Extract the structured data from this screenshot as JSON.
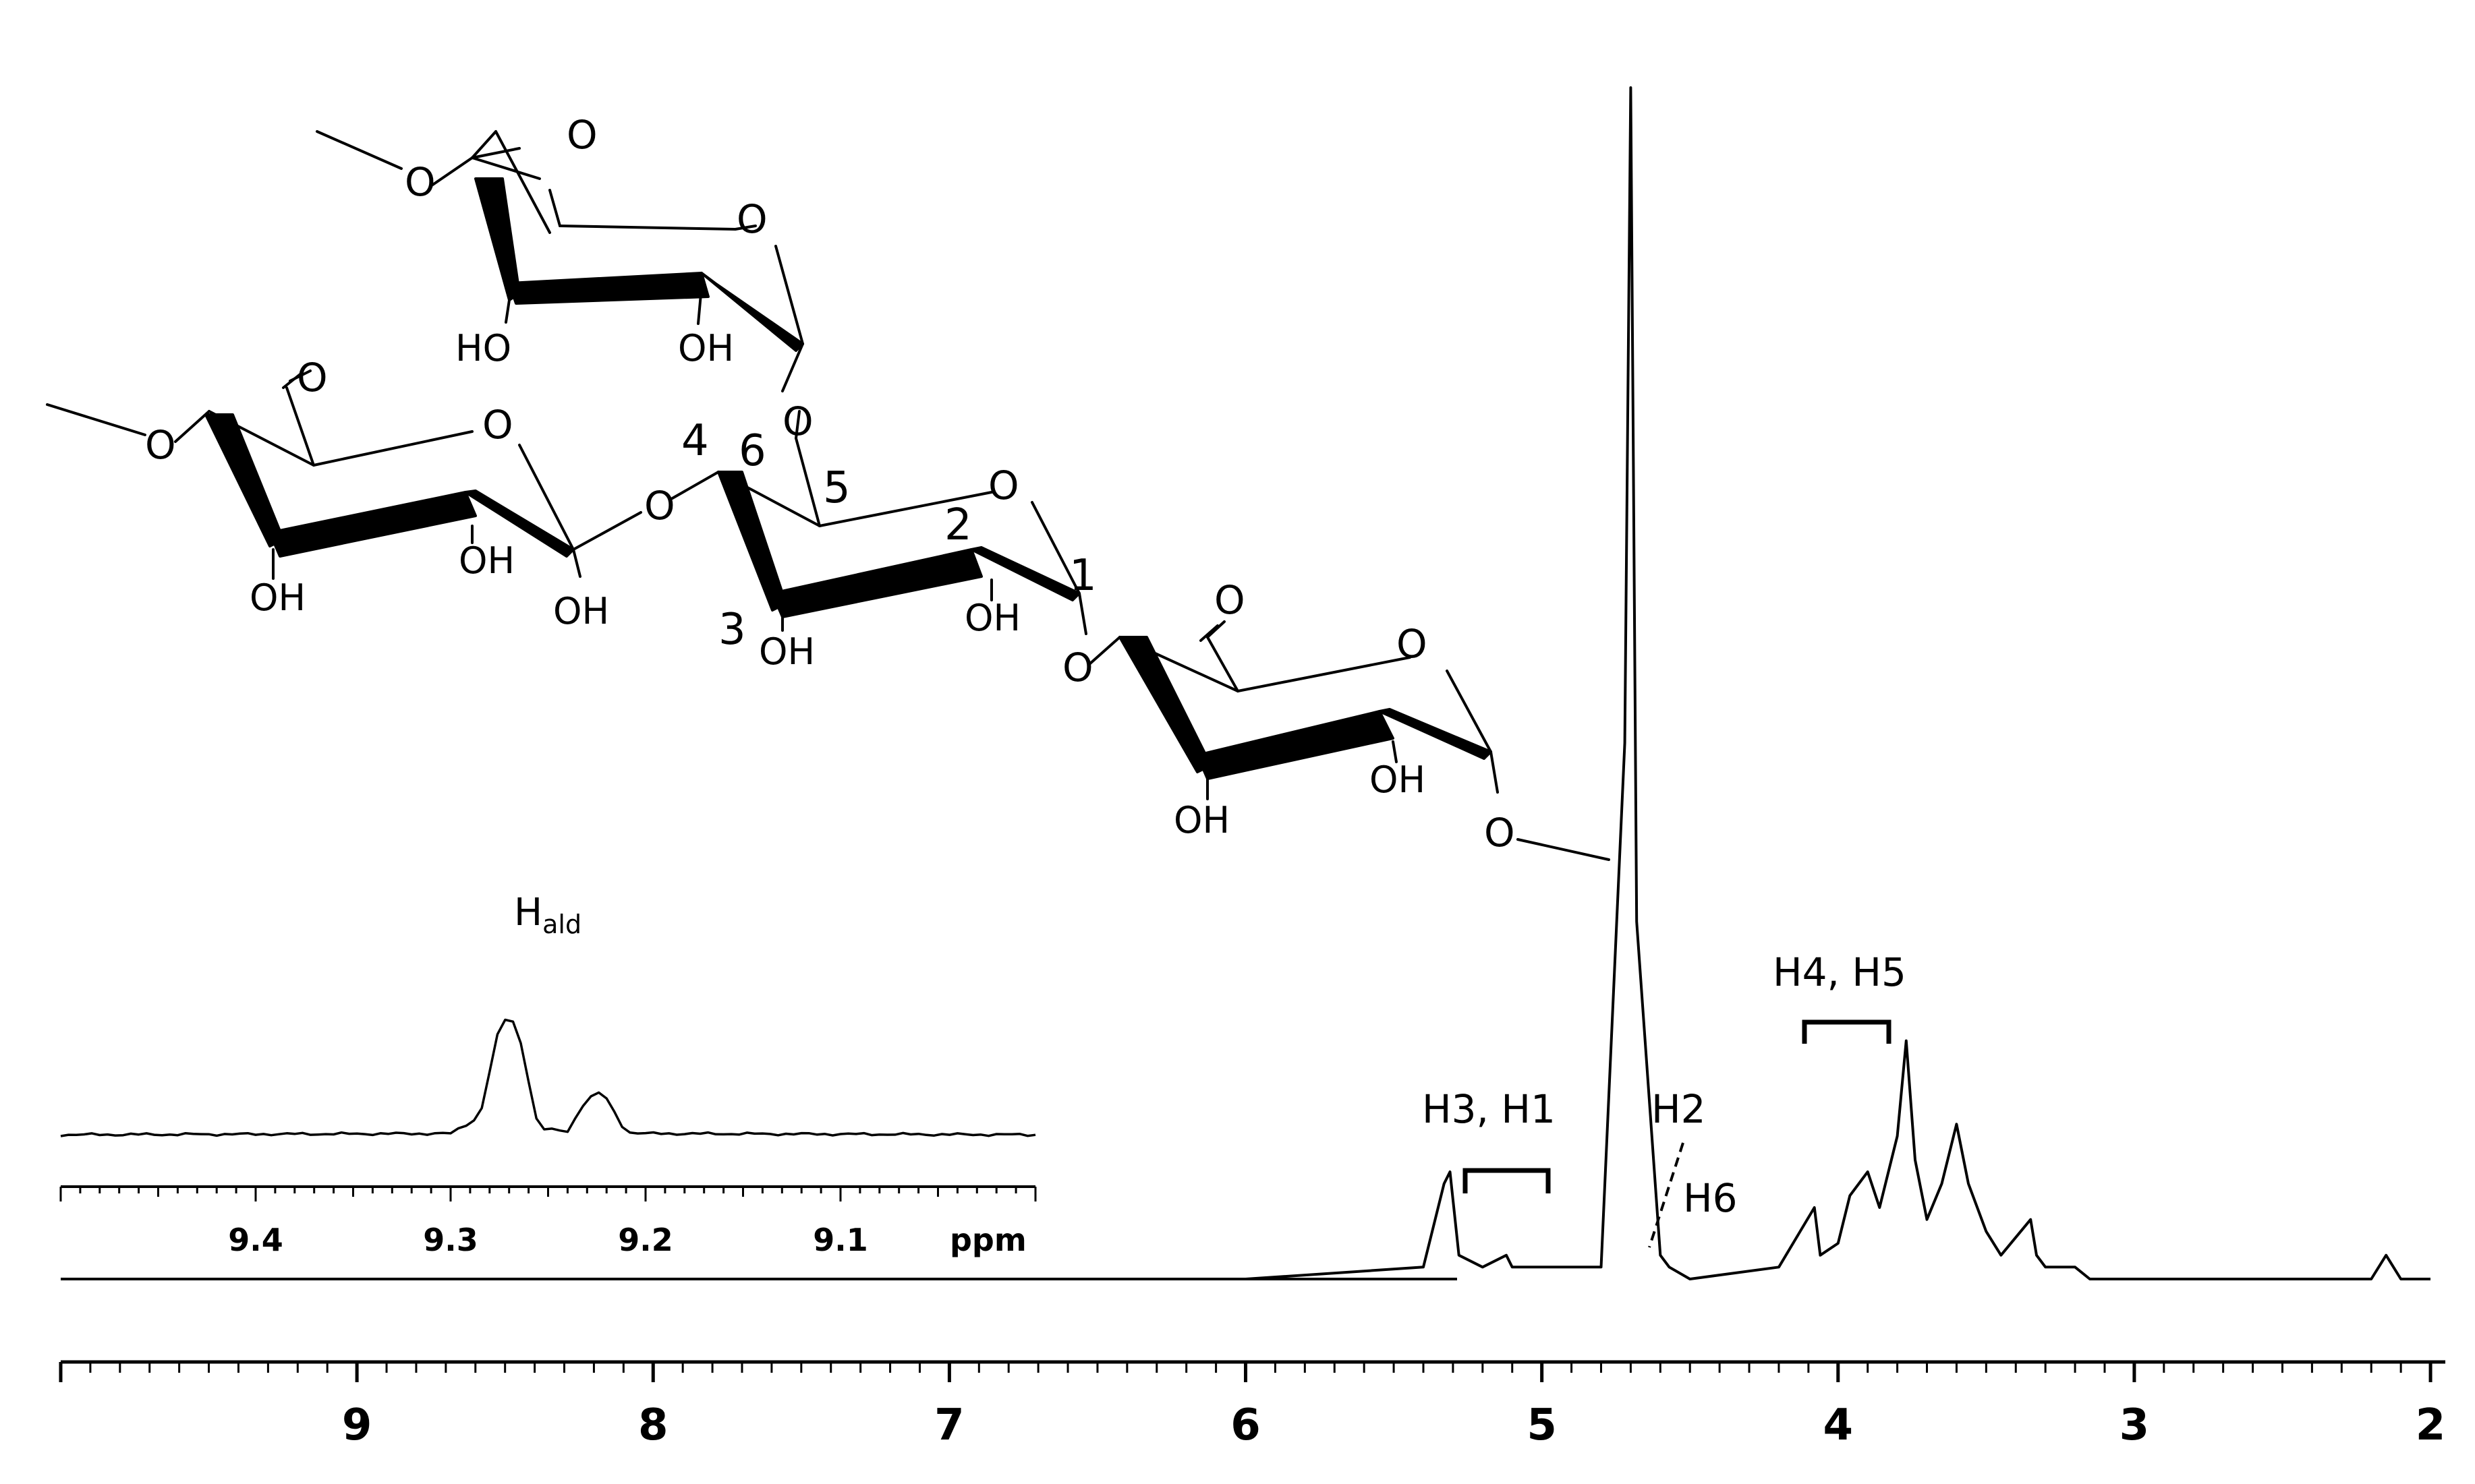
{
  "chart_data": [
    {
      "type": "line",
      "title": "",
      "xlabel": "",
      "ylabel": "",
      "xlim": [
        10.0,
        1.95
      ],
      "x_reversed": true,
      "ticks": [
        "9",
        "8",
        "7",
        "6",
        "5",
        "4",
        "3",
        "2"
      ],
      "grid": false,
      "series": [
        {
          "x": [
            9.0,
            6.0,
            5.4,
            5.33,
            5.31,
            5.28,
            5.2,
            5.12,
            5.1,
            5.05,
            4.8,
            4.72,
            4.7,
            4.68,
            4.6,
            4.57,
            4.5,
            4.2,
            4.08,
            4.06,
            4.0,
            3.96,
            3.9,
            3.86,
            3.8,
            3.77,
            3.74,
            3.7,
            3.65,
            3.6,
            3.56,
            3.5,
            3.45,
            3.35,
            3.33,
            3.3,
            3.2,
            3.15,
            2.2,
            2.15,
            2.1,
            2.0
          ],
          "y": [
            0,
            0,
            0.01,
            0.08,
            0.09,
            0.02,
            0.01,
            0.02,
            0.01,
            0.01,
            0.01,
            0.45,
            1.0,
            0.3,
            0.02,
            0.01,
            0.0,
            0.01,
            0.06,
            0.02,
            0.03,
            0.07,
            0.09,
            0.06,
            0.12,
            0.2,
            0.1,
            0.05,
            0.08,
            0.13,
            0.08,
            0.04,
            0.02,
            0.05,
            0.02,
            0.01,
            0.01,
            0.0,
            0.0,
            0.02,
            0.0,
            0.0
          ]
        }
      ],
      "annotations": [
        "H3, H1",
        "H2",
        "H6",
        "H4, H5"
      ]
    },
    {
      "type": "line",
      "title": "",
      "xlabel": "ppm",
      "ylabel": "",
      "xlim": [
        9.5,
        9.0
      ],
      "x_reversed": true,
      "ticks": [
        "9.4",
        "9.3",
        "9.2",
        "9.1"
      ],
      "grid": false,
      "series": [
        {
          "x": [
            9.5,
            9.3,
            9.285,
            9.275,
            9.27,
            9.265,
            9.255,
            9.24,
            9.232,
            9.225,
            9.22,
            9.21,
            9.2,
            9.0
          ],
          "y": [
            0,
            0.01,
            0.15,
            0.9,
            1.0,
            0.85,
            0.05,
            0.03,
            0.25,
            0.36,
            0.3,
            0.02,
            0.01,
            0
          ]
        }
      ],
      "annotation": {
        "base": "H",
        "subscript": "ald"
      }
    }
  ],
  "structure": {
    "o_label": "O",
    "oh_label": "OH",
    "ho_label": "HO",
    "carbon_numbers": [
      "1",
      "2",
      "3",
      "4",
      "5",
      "6"
    ]
  }
}
